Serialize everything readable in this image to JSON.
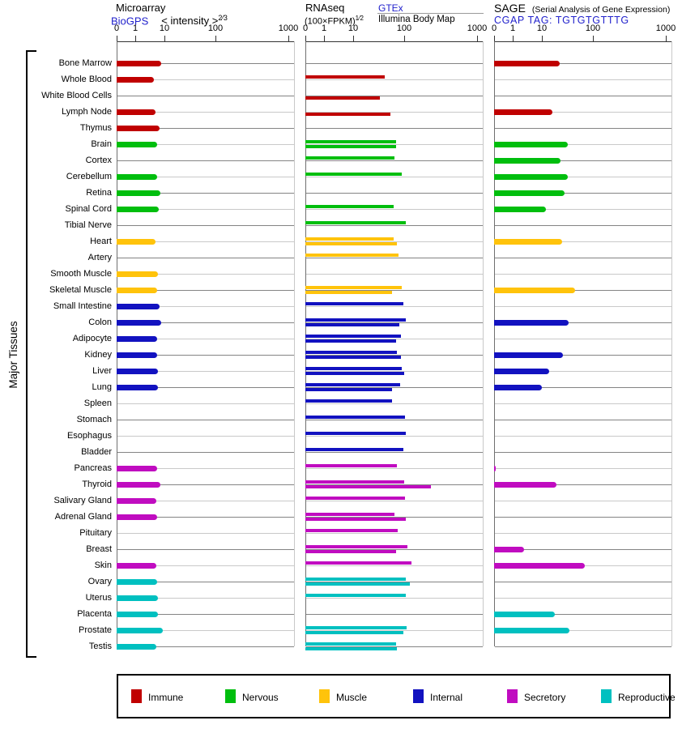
{
  "page": {
    "background": "#FFFFFF",
    "link_color": "#2222CC"
  },
  "sidebar": {
    "label": "Major Tissues"
  },
  "panels": {
    "microarray": {
      "title": "Microarray",
      "source_link": "BioGPS",
      "scale_label": "< intensity >",
      "scale_exponent": "2⁄3"
    },
    "rnaseq": {
      "title": "RNAseq",
      "unit_label": "(100×FPKM)",
      "unit_exponent": "1⁄2",
      "source_link": "GTEx",
      "source_2": "Illumina Body Map"
    },
    "sage": {
      "title": "SAGE",
      "subtitle": "(Serial Analysis of Gene Expression)",
      "tag_line": "CGAP TAG: TGTGTGTTTG"
    }
  },
  "axis": {
    "tick_labels": [
      "0",
      "1",
      "10",
      "100",
      "1000"
    ],
    "tick_values": [
      0,
      1,
      10,
      100,
      1000
    ],
    "scale": "pseudo-log"
  },
  "legend": {
    "items": [
      {
        "key": "immune",
        "label": "Immune",
        "color": "#C00000"
      },
      {
        "key": "nervous",
        "label": "Nervous",
        "color": "#00BE0E"
      },
      {
        "key": "muscle",
        "label": "Muscle",
        "color": "#FFC30B"
      },
      {
        "key": "internal",
        "label": "Internal",
        "color": "#1212C0"
      },
      {
        "key": "secretory",
        "label": "Secretory",
        "color": "#C00CC0"
      },
      {
        "key": "reproductive",
        "label": "Reproductive",
        "color": "#00C0C0"
      }
    ]
  },
  "chart_data": {
    "type": "bar",
    "orientation": "horizontal",
    "x_scale": "pseudo-log with ticks 0,1,10,100,1000",
    "x_range": [
      0,
      1000
    ],
    "panels": [
      "Microarray (BioGPS, intensity^2/3)",
      "RNAseq (GTEx upper bar / Illumina Body Map lower bar, (100×FPKM)^1/2)",
      "SAGE (CGAP TAG: TGTGTGTTTG)"
    ],
    "legend_position": "bottom",
    "tissues": [
      {
        "name": "Bone Marrow",
        "category": "immune",
        "microarray": 7.7,
        "rnaseq_gtex": null,
        "rnaseq_illumina": null,
        "sage": 22
      },
      {
        "name": "Whole Blood",
        "category": "immune",
        "microarray": 4.4,
        "rnaseq_gtex": 42,
        "rnaseq_illumina": null,
        "sage": null
      },
      {
        "name": "White Blood Cells",
        "category": "immune",
        "microarray": null,
        "rnaseq_gtex": null,
        "rnaseq_illumina": 33,
        "sage": null
      },
      {
        "name": "Lymph Node",
        "category": "immune",
        "microarray": 4.9,
        "rnaseq_gtex": null,
        "rnaseq_illumina": 54,
        "sage": 16
      },
      {
        "name": "Thymus",
        "category": "immune",
        "microarray": 6.8,
        "rnaseq_gtex": null,
        "rnaseq_illumina": null,
        "sage": null
      },
      {
        "name": "Brain",
        "category": "nervous",
        "microarray": 5.6,
        "rnaseq_gtex": 69,
        "rnaseq_illumina": 69,
        "sage": 32
      },
      {
        "name": "Cortex",
        "category": "nervous",
        "microarray": null,
        "rnaseq_gtex": 65,
        "rnaseq_illumina": null,
        "sage": 23
      },
      {
        "name": "Cerebellum",
        "category": "nervous",
        "microarray": 5.6,
        "rnaseq_gtex": 90,
        "rnaseq_illumina": null,
        "sage": 32
      },
      {
        "name": "Retina",
        "category": "nervous",
        "microarray": 7.2,
        "rnaseq_gtex": null,
        "rnaseq_illumina": null,
        "sage": 28
      },
      {
        "name": "Spinal Cord",
        "category": "nervous",
        "microarray": 6.4,
        "rnaseq_gtex": 62,
        "rnaseq_illumina": null,
        "sage": 12
      },
      {
        "name": "Tibial Nerve",
        "category": "nervous",
        "microarray": null,
        "rnaseq_gtex": 105,
        "rnaseq_illumina": null,
        "sage": null
      },
      {
        "name": "Heart",
        "category": "muscle",
        "microarray": 4.9,
        "rnaseq_gtex": 62,
        "rnaseq_illumina": 72,
        "sage": 25
      },
      {
        "name": "Artery",
        "category": "muscle",
        "microarray": null,
        "rnaseq_gtex": 77,
        "rnaseq_illumina": null,
        "sage": null
      },
      {
        "name": "Smooth Muscle",
        "category": "muscle",
        "microarray": 6.0,
        "rnaseq_gtex": null,
        "rnaseq_illumina": null,
        "sage": null
      },
      {
        "name": "Skeletal Muscle",
        "category": "muscle",
        "microarray": 5.6,
        "rnaseq_gtex": 90,
        "rnaseq_illumina": 58,
        "sage": 45
      },
      {
        "name": "Small Intestine",
        "category": "internal",
        "microarray": 6.8,
        "rnaseq_gtex": 96,
        "rnaseq_illumina": null,
        "sage": null
      },
      {
        "name": "Colon",
        "category": "internal",
        "microarray": 7.7,
        "rnaseq_gtex": 105,
        "rnaseq_illumina": 80,
        "sage": 33
      },
      {
        "name": "Adipocyte",
        "category": "internal",
        "microarray": 5.6,
        "rnaseq_gtex": 87,
        "rnaseq_illumina": 69,
        "sage": null
      },
      {
        "name": "Kidney",
        "category": "internal",
        "microarray": 5.6,
        "rnaseq_gtex": 72,
        "rnaseq_illumina": 87,
        "sage": 26
      },
      {
        "name": "Liver",
        "category": "internal",
        "microarray": 6.0,
        "rnaseq_gtex": 90,
        "rnaseq_illumina": 100,
        "sage": 14
      },
      {
        "name": "Lung",
        "category": "internal",
        "microarray": 6.0,
        "rnaseq_gtex": 84,
        "rnaseq_illumina": 58,
        "sage": 10
      },
      {
        "name": "Spleen",
        "category": "internal",
        "microarray": null,
        "rnaseq_gtex": 58,
        "rnaseq_illumina": null,
        "sage": null
      },
      {
        "name": "Stomach",
        "category": "internal",
        "microarray": null,
        "rnaseq_gtex": 102,
        "rnaseq_illumina": null,
        "sage": null
      },
      {
        "name": "Esophagus",
        "category": "internal",
        "microarray": null,
        "rnaseq_gtex": 105,
        "rnaseq_illumina": null,
        "sage": null
      },
      {
        "name": "Bladder",
        "category": "internal",
        "microarray": null,
        "rnaseq_gtex": 96,
        "rnaseq_illumina": null,
        "sage": null
      },
      {
        "name": "Pancreas",
        "category": "secretory",
        "microarray": 5.6,
        "rnaseq_gtex": 72,
        "rnaseq_illumina": null,
        "sage": 0.1
      },
      {
        "name": "Thyroid",
        "category": "secretory",
        "microarray": 7.2,
        "rnaseq_gtex": 100,
        "rnaseq_illumina": 235,
        "sage": 19
      },
      {
        "name": "Salivary Gland",
        "category": "secretory",
        "microarray": 5.3,
        "rnaseq_gtex": 102,
        "rnaseq_illumina": null,
        "sage": null
      },
      {
        "name": "Adrenal Gland",
        "category": "secretory",
        "microarray": 5.6,
        "rnaseq_gtex": 65,
        "rnaseq_illumina": 105,
        "sage": null
      },
      {
        "name": "Pituitary",
        "category": "secretory",
        "microarray": null,
        "rnaseq_gtex": 75,
        "rnaseq_illumina": null,
        "sage": null
      },
      {
        "name": "Breast",
        "category": "secretory",
        "microarray": null,
        "rnaseq_gtex": 111,
        "rnaseq_illumina": 69,
        "sage": 2.4
      },
      {
        "name": "Skin",
        "category": "secretory",
        "microarray": 5.3,
        "rnaseq_gtex": 127,
        "rnaseq_illumina": null,
        "sage": 69
      },
      {
        "name": "Ovary",
        "category": "reproductive",
        "microarray": 5.6,
        "rnaseq_gtex": 105,
        "rnaseq_illumina": 121,
        "sage": null
      },
      {
        "name": "Uterus",
        "category": "reproductive",
        "microarray": 6.0,
        "rnaseq_gtex": 105,
        "rnaseq_illumina": null,
        "sage": null
      },
      {
        "name": "Placenta",
        "category": "reproductive",
        "microarray": 6.0,
        "rnaseq_gtex": null,
        "rnaseq_illumina": null,
        "sage": 18
      },
      {
        "name": "Prostate",
        "category": "reproductive",
        "microarray": 8.8,
        "rnaseq_gtex": 108,
        "rnaseq_illumina": 96,
        "sage": 35
      },
      {
        "name": "Testis",
        "category": "reproductive",
        "microarray": 5.3,
        "rnaseq_gtex": 69,
        "rnaseq_illumina": 72,
        "sage": null
      }
    ]
  }
}
